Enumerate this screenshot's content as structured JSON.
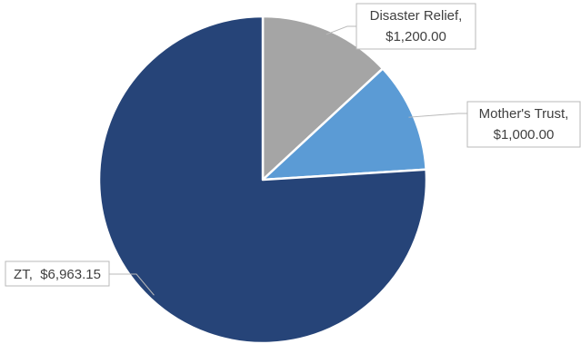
{
  "chart_data": {
    "type": "pie",
    "title": "",
    "categories": [
      "Disaster Relief",
      "Mother's Trust",
      "ZT"
    ],
    "values": [
      1200.0,
      1000.0,
      6963.15
    ],
    "labels": [
      [
        "Disaster Relief,",
        "$1,200.00"
      ],
      [
        "Mother's Trust,",
        "$1,000.00"
      ],
      [
        "ZT,  $6,963.15"
      ]
    ],
    "colors": [
      "#a5a5a5",
      "#5b9bd5",
      "#264478"
    ],
    "start": "12 o'clock",
    "direction": "clockwise",
    "legend": "none"
  }
}
